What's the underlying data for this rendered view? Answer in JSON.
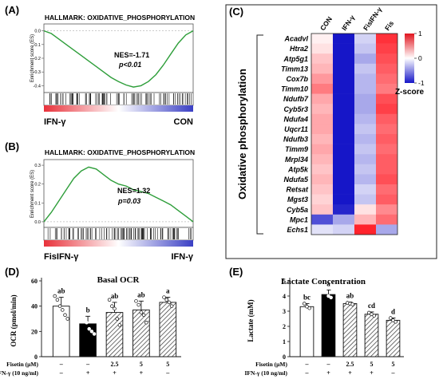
{
  "panels": {
    "A": "(A)",
    "B": "(B)",
    "C": "(C)",
    "D": "(D)",
    "E": "(E)"
  },
  "chart_data": [
    {
      "panel": "A",
      "type": "line",
      "title": "HALLMARK: OXIDATIVE_PHOSPHORYLATION",
      "ylabel": "Enrichment score (ES)",
      "yticks": [
        "0.0",
        "-0.1",
        "-0.2",
        "-0.3",
        "-0.4"
      ],
      "ylim": [
        -0.45,
        0.05
      ],
      "x": [
        0,
        0.05,
        0.1,
        0.15,
        0.2,
        0.25,
        0.3,
        0.35,
        0.4,
        0.45,
        0.5,
        0.55,
        0.6,
        0.65,
        0.7,
        0.75,
        0.8,
        0.85,
        0.9,
        0.95,
        1.0
      ],
      "y": [
        0,
        -0.02,
        -0.06,
        -0.1,
        -0.14,
        -0.18,
        -0.22,
        -0.26,
        -0.3,
        -0.34,
        -0.37,
        -0.395,
        -0.41,
        -0.4,
        -0.37,
        -0.32,
        -0.25,
        -0.17,
        -0.09,
        -0.03,
        0
      ],
      "annotation": [
        "NES=-1.71",
        "p<0.01"
      ],
      "left_label": "IFN-γ",
      "right_label": "CON"
    },
    {
      "panel": "B",
      "type": "line",
      "title": "HALLMARK: OXIDATIVE_PHOSPHORYLATION",
      "ylabel": "Enrichment score (ES)",
      "yticks": [
        "0.3",
        "0.2",
        "0.1",
        "0.0"
      ],
      "ylim": [
        -0.03,
        0.33
      ],
      "x": [
        0,
        0.05,
        0.1,
        0.15,
        0.2,
        0.25,
        0.3,
        0.35,
        0.4,
        0.45,
        0.5,
        0.55,
        0.6,
        0.65,
        0.7,
        0.75,
        0.8,
        0.85,
        0.9,
        0.95,
        1.0
      ],
      "y": [
        0,
        0.05,
        0.11,
        0.17,
        0.23,
        0.27,
        0.29,
        0.28,
        0.25,
        0.22,
        0.2,
        0.19,
        0.17,
        0.16,
        0.15,
        0.13,
        0.11,
        0.09,
        0.06,
        0.03,
        0
      ],
      "annotation": [
        "NES=1.32",
        "p=0.03"
      ],
      "left_label": "FisIFN-γ",
      "right_label": "IFN-γ"
    },
    {
      "panel": "C",
      "type": "heatmap",
      "side_label": "Oxidative phosphorylation",
      "columns": [
        "CON",
        "IFN-γ",
        "FisIFN-γ",
        "Fis"
      ],
      "rows": [
        "Acadvl",
        "Htra2",
        "Atp5g1",
        "Timm13",
        "Cox7b",
        "Timm10",
        "Ndufb7",
        "Cyb5r3",
        "Ndufa4",
        "Uqcr11",
        "Ndufb3",
        "Timm9",
        "Mrpl34",
        "Atp5k",
        "Ndufa5",
        "Retsat",
        "Mgst3",
        "Cyb5a",
        "Mpc1",
        "Echs1"
      ],
      "values": [
        [
          0.1,
          -1.6,
          -0.3,
          1.4
        ],
        [
          0.2,
          -1.6,
          -0.4,
          1.3
        ],
        [
          0.4,
          -1.6,
          -0.6,
          1.2
        ],
        [
          0.5,
          -1.6,
          -0.4,
          1.1
        ],
        [
          0.7,
          -1.6,
          -0.5,
          1.0
        ],
        [
          0.9,
          -1.6,
          -0.5,
          0.9
        ],
        [
          0.6,
          -1.6,
          -0.6,
          1.2
        ],
        [
          0.5,
          -1.6,
          -0.6,
          1.3
        ],
        [
          0.6,
          -1.6,
          -0.5,
          1.1
        ],
        [
          0.6,
          -1.6,
          -0.4,
          1.0
        ],
        [
          0.5,
          -1.6,
          -0.5,
          1.1
        ],
        [
          0.6,
          -1.6,
          -0.4,
          1.0
        ],
        [
          0.5,
          -1.6,
          -0.5,
          1.1
        ],
        [
          0.4,
          -1.6,
          -0.4,
          1.1
        ],
        [
          0.5,
          -1.6,
          -0.5,
          1.2
        ],
        [
          0.4,
          -1.6,
          -0.3,
          1.0
        ],
        [
          0.3,
          -1.6,
          -0.4,
          1.1
        ],
        [
          0.4,
          -1.5,
          0.2,
          0.8
        ],
        [
          -1.2,
          -0.6,
          0.5,
          1.0
        ],
        [
          -0.2,
          -0.3,
          1.5,
          -0.6
        ]
      ],
      "legend_title": "Z-score",
      "legend_ticks": [
        "1",
        "0",
        "-1"
      ]
    },
    {
      "panel": "D",
      "type": "bar",
      "title": "Basal OCR",
      "ylabel": "OCR (pmol/min)",
      "yticks": [
        "0",
        "20",
        "40",
        "60"
      ],
      "ylim": [
        0,
        60
      ],
      "values": [
        40,
        26,
        35,
        37,
        43
      ],
      "errors": [
        7,
        6,
        8,
        7,
        4
      ],
      "letters": [
        "ab",
        "b",
        "ab",
        "ab",
        "a"
      ],
      "points": [
        [
          48,
          45,
          40,
          37,
          33,
          30
        ],
        [
          34,
          30,
          27,
          22,
          20,
          18
        ],
        [
          45,
          40,
          38,
          30,
          25
        ],
        [
          44,
          41,
          35,
          33,
          27
        ],
        [
          47,
          45,
          43,
          40
        ]
      ],
      "fills": [
        "white",
        "black",
        "hatch",
        "hatch",
        "hatch"
      ],
      "row_labels": [
        "Fisetin (μM)",
        "IFN-γ (10 ng/ml)"
      ],
      "fisetin": [
        "–",
        "–",
        "2.5",
        "5",
        "5"
      ],
      "ifn": [
        "–",
        "+",
        "+",
        "+",
        "–"
      ]
    },
    {
      "panel": "E",
      "type": "bar",
      "title": "Lactate Concentration",
      "ylabel": "Lactate (mM)",
      "yticks": [
        "0",
        "1",
        "2",
        "3",
        "4",
        "5"
      ],
      "ylim": [
        0,
        5
      ],
      "values": [
        3.3,
        4.1,
        3.5,
        2.8,
        2.4
      ],
      "errors": [
        0.2,
        0.3,
        0.1,
        0.15,
        0.15
      ],
      "letters": [
        "bc",
        "a",
        "ab",
        "cd",
        "d"
      ],
      "points": [
        [
          3.5,
          3.3,
          3.2
        ],
        [
          4.3,
          4.0,
          3.9
        ],
        [
          3.55,
          3.5,
          3.45
        ],
        [
          2.9,
          2.8,
          2.7
        ],
        [
          2.55,
          2.4,
          2.3
        ]
      ],
      "fills": [
        "white",
        "black",
        "hatch",
        "hatch",
        "hatch"
      ],
      "row_labels": [
        "Fisetin (μM)",
        "IFN-γ (10 ng/ml)"
      ],
      "fisetin": [
        "–",
        "–",
        "2.5",
        "5",
        "5"
      ],
      "ifn": [
        "–",
        "+",
        "+",
        "+",
        "–"
      ]
    }
  ]
}
